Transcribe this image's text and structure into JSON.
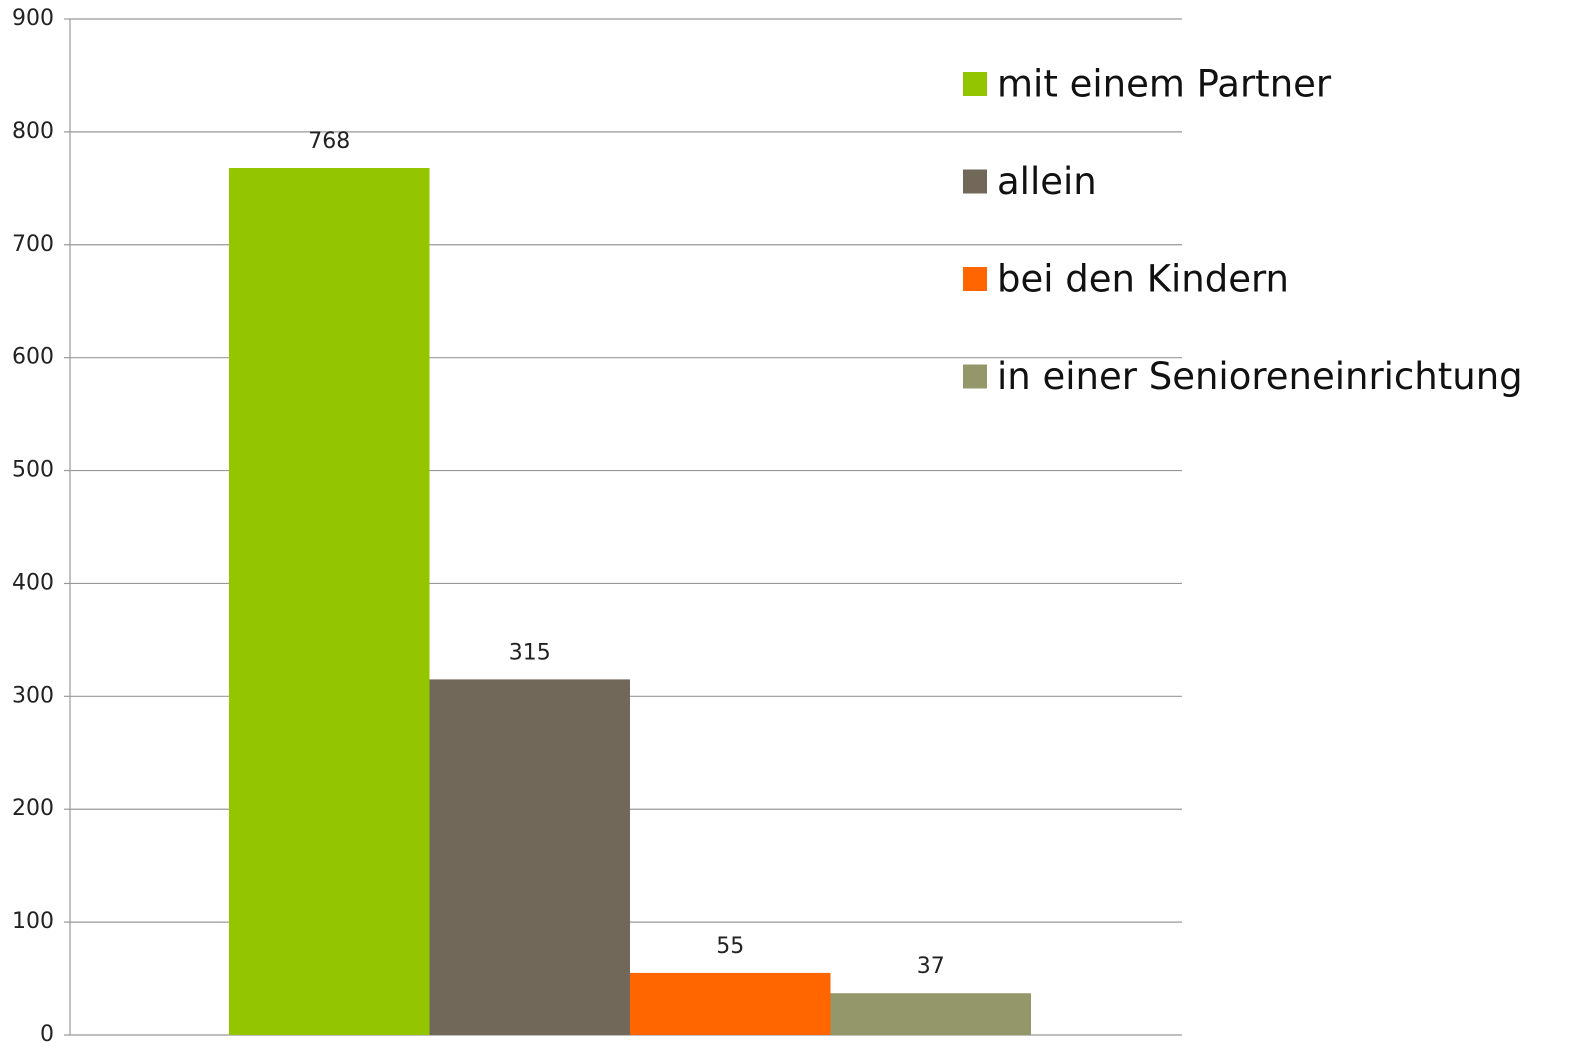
{
  "chart_data": {
    "type": "bar",
    "categories": [
      null
    ],
    "series": [
      {
        "name": "mit einem Partner",
        "color": "#94c600",
        "values": [
          768
        ]
      },
      {
        "name": "allein",
        "color": "#71685a",
        "values": [
          315
        ]
      },
      {
        "name": "bei den Kindern",
        "color": "#ff6600",
        "values": [
          55
        ]
      },
      {
        "name": "in einer Senioreneinrichtung",
        "color": "#94976a",
        "values": [
          37
        ]
      }
    ],
    "ylim": [
      0,
      900
    ],
    "yticks": [
      0,
      100,
      200,
      300,
      400,
      500,
      600,
      700,
      800,
      900
    ],
    "grid": true,
    "legend": "top-right",
    "data_labels": true
  }
}
